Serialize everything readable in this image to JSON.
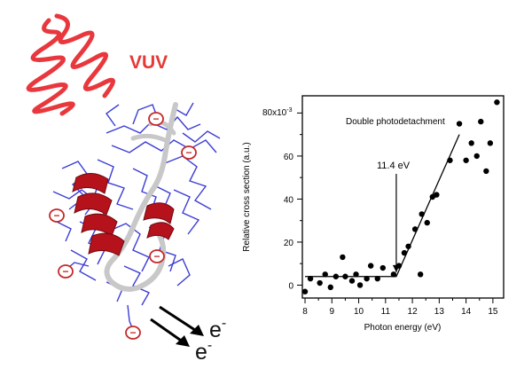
{
  "illustration": {
    "light_label": "VUV",
    "electron_label": "e",
    "electron_charge": "-",
    "charge_badge_symbol": "−",
    "light_color": "#e8383d",
    "helix_color": "#b5121b",
    "backbone_color": "#c8c8c8",
    "sidechain_color": "#3c3cd6"
  },
  "chart_data": {
    "type": "scatter",
    "xlabel": "Photon energy (eV)",
    "ylabel": "Relative cross section (a.u.)",
    "y_multiplier_label": "x10",
    "y_multiplier_exponent": "-3",
    "xlim": [
      7.9,
      15.4
    ],
    "ylim": [
      -6,
      88
    ],
    "x_ticks": [
      8,
      9,
      10,
      11,
      12,
      13,
      14,
      15
    ],
    "y_ticks": [
      0,
      20,
      40,
      60,
      80
    ],
    "x_ticks_minor": [
      8.5,
      9.5,
      10.5,
      11.5,
      12.5,
      13.5,
      14.5
    ],
    "y_ticks_minor": [
      10,
      30,
      50,
      70
    ],
    "points_x": [
      8.0,
      8.2,
      8.55,
      8.75,
      8.95,
      9.15,
      9.4,
      9.5,
      9.75,
      9.9,
      10.05,
      10.3,
      10.45,
      10.7,
      10.9,
      11.3,
      11.5,
      11.7,
      11.85,
      12.1,
      12.3,
      12.35,
      12.55,
      12.75,
      12.9,
      13.4,
      13.75,
      14.0,
      14.2,
      14.4,
      14.55,
      14.75,
      14.9,
      15.15
    ],
    "points_y": [
      -3,
      3,
      1,
      5,
      -1,
      4,
      13,
      4,
      2,
      5,
      0,
      3,
      9,
      3,
      8,
      5,
      9,
      15,
      18,
      26,
      5,
      33,
      29,
      41,
      42,
      58,
      75,
      58,
      66,
      60,
      76,
      53,
      66,
      85
    ],
    "fit_x": [
      8.0,
      11.4,
      13.75
    ],
    "fit_y": [
      4,
      4,
      70
    ],
    "annotation_label": "Double photodetachment",
    "threshold_label": "11.4 eV",
    "threshold_x": 11.4,
    "grid": false,
    "marker_color": "#000000",
    "line_color": "#000000"
  }
}
